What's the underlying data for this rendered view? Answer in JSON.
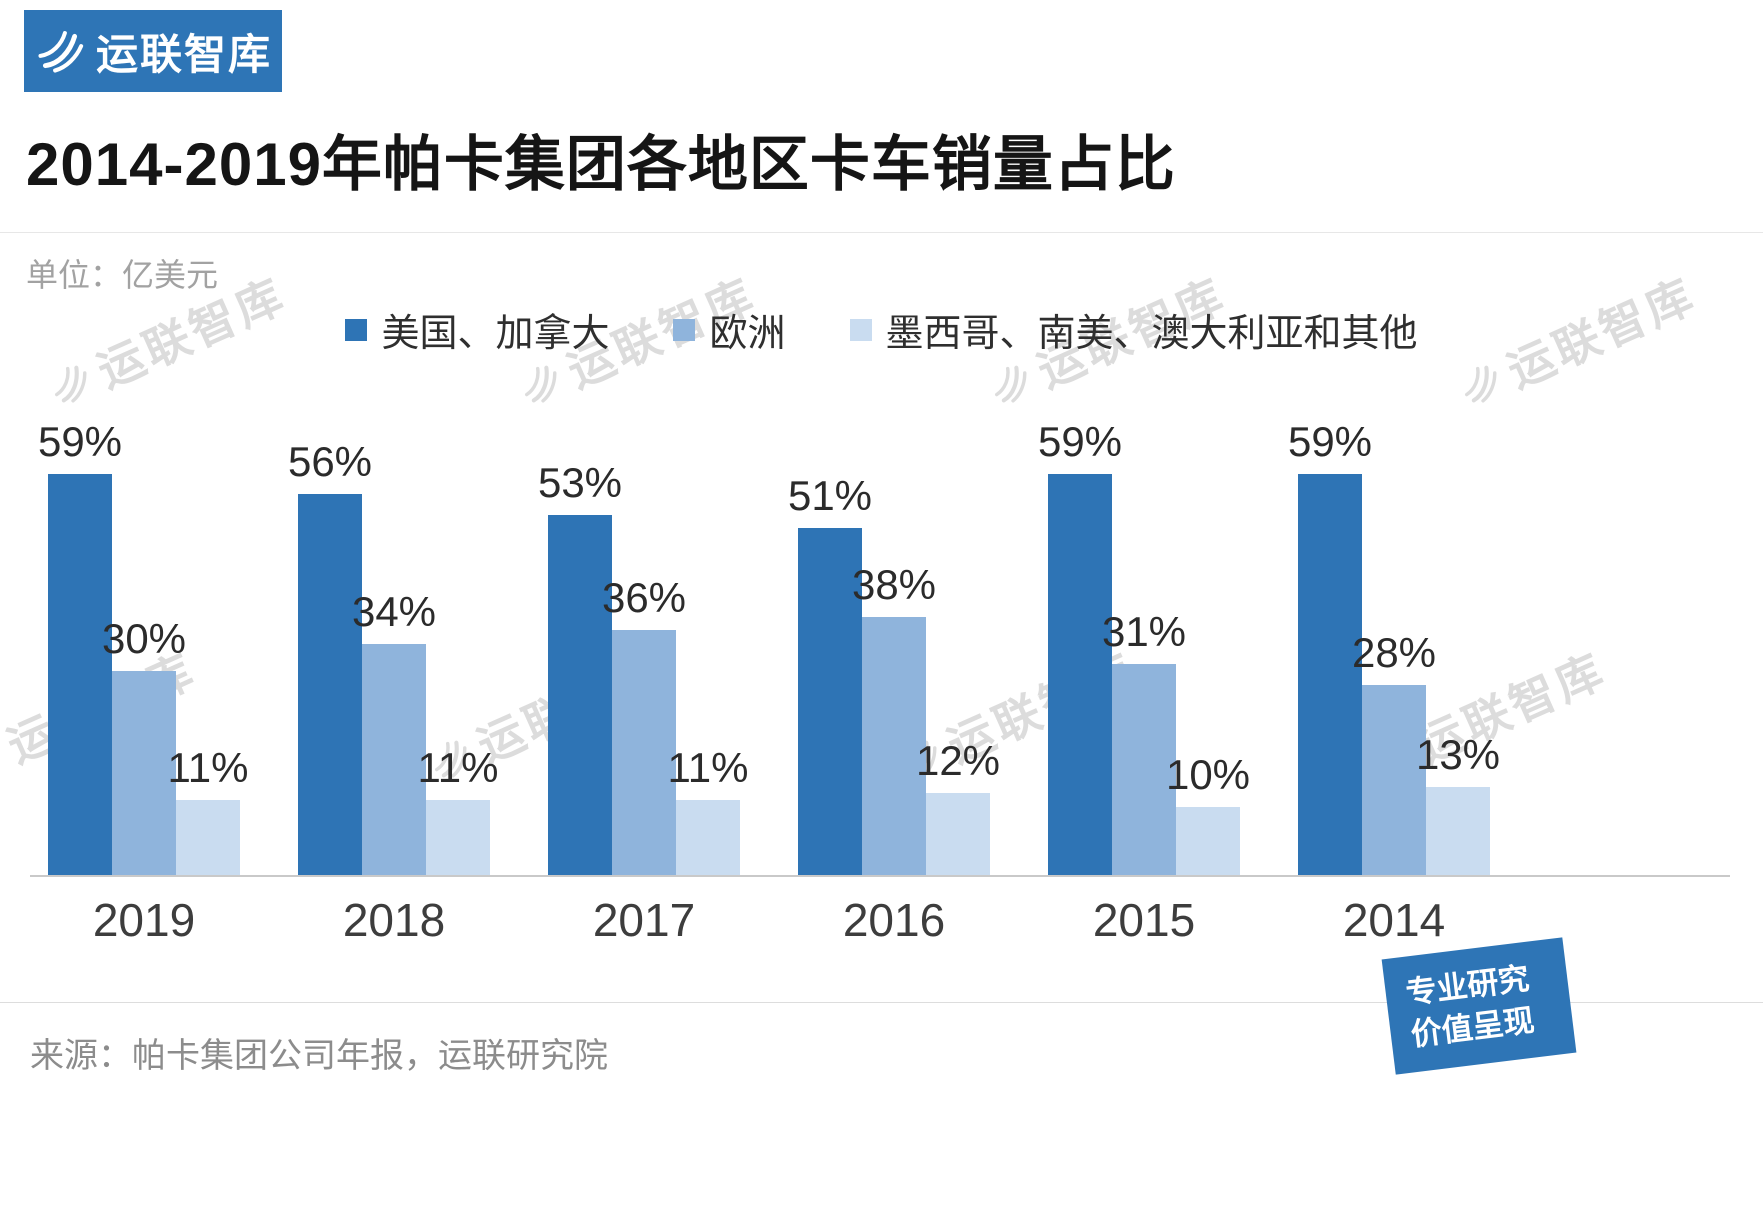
{
  "logo": {
    "text": "运联智库"
  },
  "page": {
    "title": "2014-2019年帕卡集团各地区卡车销量占比",
    "unit_label": "单位：亿美元",
    "source": "来源：帕卡集团公司年报，运联研究院"
  },
  "badge": {
    "line1": "专业研究",
    "line2": "价值呈现"
  },
  "watermark": {
    "text": "运联智库"
  },
  "colors": {
    "brand": "#2E75B6",
    "series1": "#2E74B5",
    "series2": "#8FB4DC",
    "series3": "#C9DCF0",
    "axis": "#C9C9C9"
  },
  "chart_data": {
    "type": "bar",
    "title": "2014-2019年帕卡集团各地区卡车销量占比",
    "unit": "亿美元",
    "categories": [
      "2019",
      "2018",
      "2017",
      "2016",
      "2015",
      "2014"
    ],
    "series": [
      {
        "name": "美国、加拿大",
        "color": "#2E74B5",
        "values": [
          59,
          56,
          53,
          51,
          59,
          59
        ]
      },
      {
        "name": "欧洲",
        "color": "#8FB4DC",
        "values": [
          30,
          34,
          36,
          38,
          31,
          28
        ]
      },
      {
        "name": "墨西哥、南美、澳大利亚和其他",
        "color": "#C9DCF0",
        "values": [
          11,
          11,
          11,
          12,
          10,
          13
        ]
      }
    ],
    "value_suffix": "%",
    "ylim": [
      0,
      65
    ],
    "grid": false,
    "legend_position": "top",
    "value_labels": true
  }
}
